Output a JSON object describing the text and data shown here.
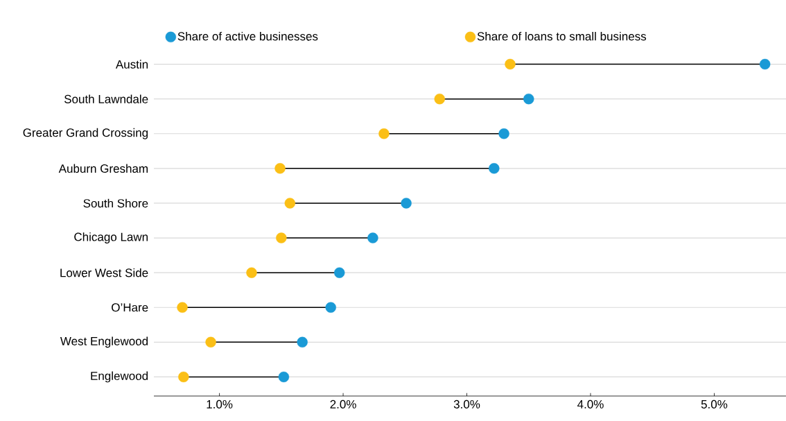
{
  "chart_data": {
    "type": "scatter",
    "orientation": "horizontal",
    "categories": [
      "Austin",
      "South Lawndale",
      "Greater Grand Crossing",
      "Auburn Gresham",
      "South Shore",
      "Chicago Lawn",
      "Lower West Side",
      "O’Hare",
      "West Englewood",
      "Englewood"
    ],
    "series": [
      {
        "name": "Share of active businesses",
        "color": "#1a9ad6",
        "values": [
          5.41,
          3.5,
          3.3,
          3.22,
          2.51,
          2.24,
          1.97,
          1.9,
          1.67,
          1.52
        ]
      },
      {
        "name": "Share of loans to small business",
        "color": "#fbbf16",
        "values": [
          3.35,
          2.78,
          2.33,
          1.49,
          1.57,
          1.5,
          1.26,
          0.7,
          0.93,
          0.71
        ]
      }
    ],
    "xlim": [
      0.47,
      5.58
    ],
    "xticks": [
      {
        "value": 1,
        "label": "1.0%"
      },
      {
        "value": 2,
        "label": "2.0%"
      },
      {
        "value": 3,
        "label": "3.0%"
      },
      {
        "value": 4,
        "label": "4.0%"
      },
      {
        "value": 5,
        "label": "5.0%"
      }
    ],
    "grid": "y",
    "legend": "top",
    "marker": "circle"
  }
}
